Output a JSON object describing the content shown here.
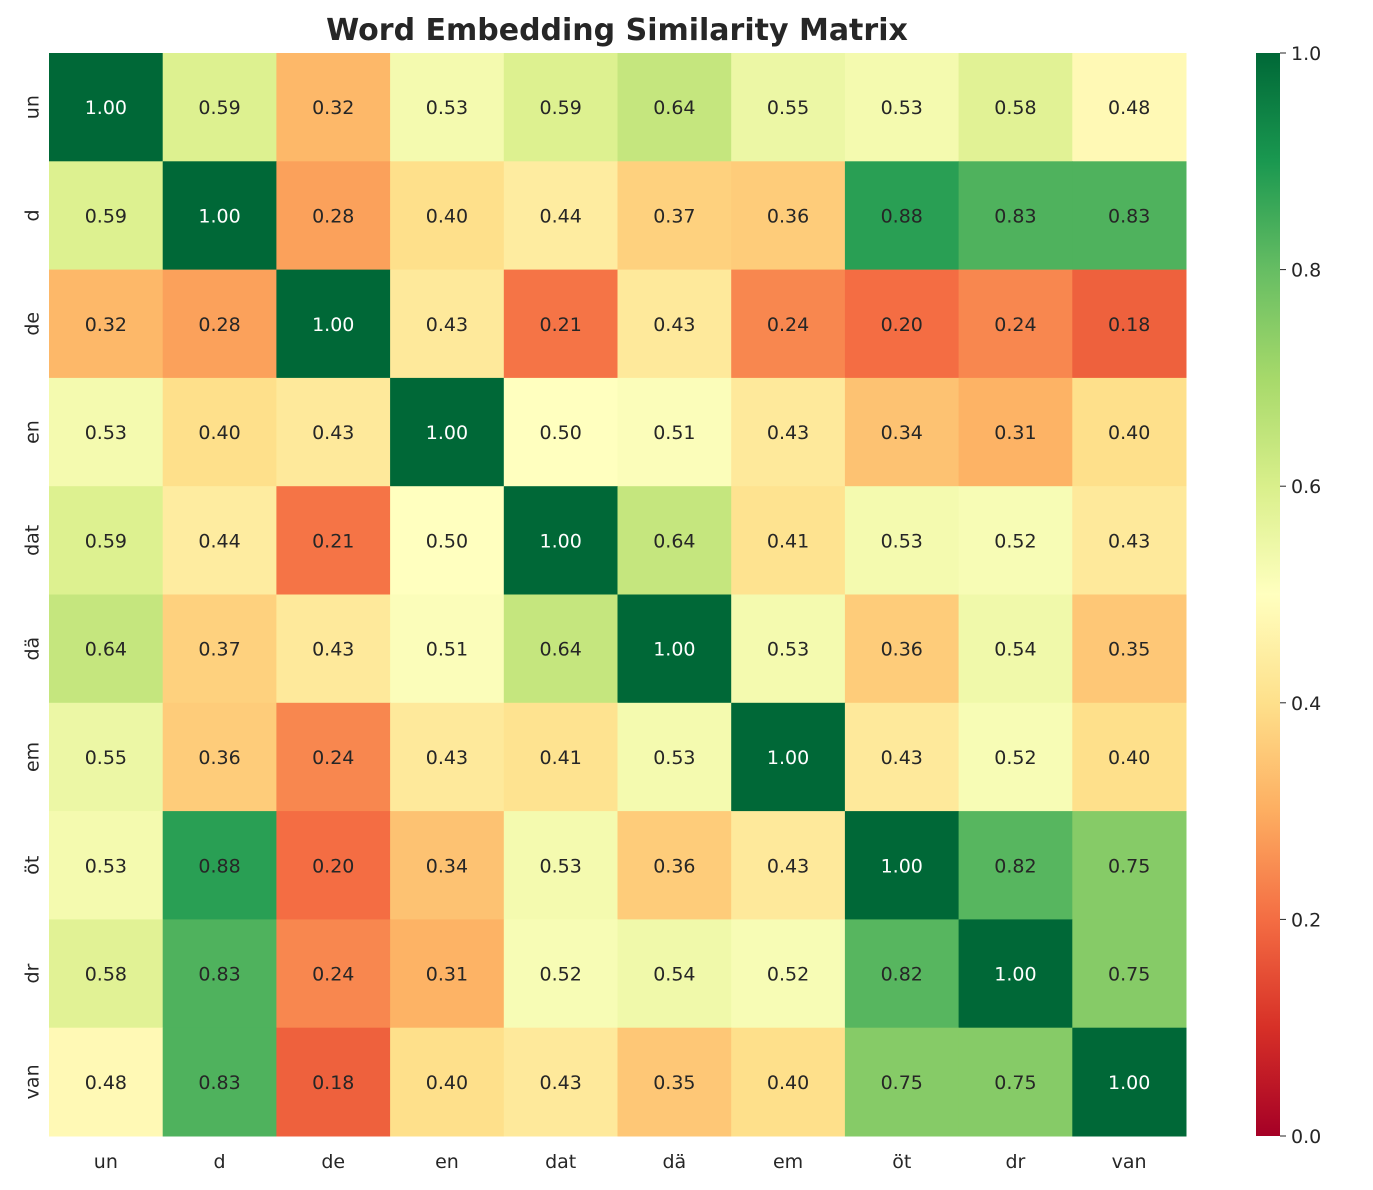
{
  "chart_data": {
    "type": "heatmap",
    "title": "Word Embedding Similarity Matrix",
    "xlabel": "",
    "ylabel": "",
    "x_categories": [
      "un",
      "d",
      "de",
      "en",
      "dat",
      "dä",
      "em",
      "öt",
      "dr",
      "van"
    ],
    "y_categories": [
      "un",
      "d",
      "de",
      "en",
      "dat",
      "dä",
      "em",
      "öt",
      "dr",
      "van"
    ],
    "values": [
      [
        1.0,
        0.59,
        0.32,
        0.53,
        0.59,
        0.64,
        0.55,
        0.53,
        0.58,
        0.48
      ],
      [
        0.59,
        1.0,
        0.28,
        0.4,
        0.44,
        0.37,
        0.36,
        0.88,
        0.83,
        0.83
      ],
      [
        0.32,
        0.28,
        1.0,
        0.43,
        0.21,
        0.43,
        0.24,
        0.2,
        0.24,
        0.18
      ],
      [
        0.53,
        0.4,
        0.43,
        1.0,
        0.5,
        0.51,
        0.43,
        0.34,
        0.31,
        0.4
      ],
      [
        0.59,
        0.44,
        0.21,
        0.5,
        1.0,
        0.64,
        0.41,
        0.53,
        0.52,
        0.43
      ],
      [
        0.64,
        0.37,
        0.43,
        0.51,
        0.64,
        1.0,
        0.53,
        0.36,
        0.54,
        0.35
      ],
      [
        0.55,
        0.36,
        0.24,
        0.43,
        0.41,
        0.53,
        1.0,
        0.43,
        0.52,
        0.4
      ],
      [
        0.53,
        0.88,
        0.2,
        0.34,
        0.53,
        0.36,
        0.43,
        1.0,
        0.82,
        0.75
      ],
      [
        0.58,
        0.83,
        0.24,
        0.31,
        0.52,
        0.54,
        0.52,
        0.82,
        1.0,
        0.75
      ],
      [
        0.48,
        0.83,
        0.18,
        0.4,
        0.43,
        0.35,
        0.4,
        0.75,
        0.75,
        1.0
      ]
    ],
    "annotation_format": "0.00",
    "colormap": "RdYlGn",
    "colormap_stops": [
      "#a50026",
      "#d73027",
      "#f46d43",
      "#fdae61",
      "#fee08b",
      "#ffffbf",
      "#d9ef8b",
      "#a6d96a",
      "#66bd63",
      "#1a9850",
      "#006837"
    ],
    "vmin": 0.0,
    "vmax": 1.0,
    "colorbar_ticks": [
      "0.0",
      "0.2",
      "0.4",
      "0.6",
      "0.8",
      "1.0"
    ],
    "colorbar_placement": "right",
    "grid": false
  }
}
